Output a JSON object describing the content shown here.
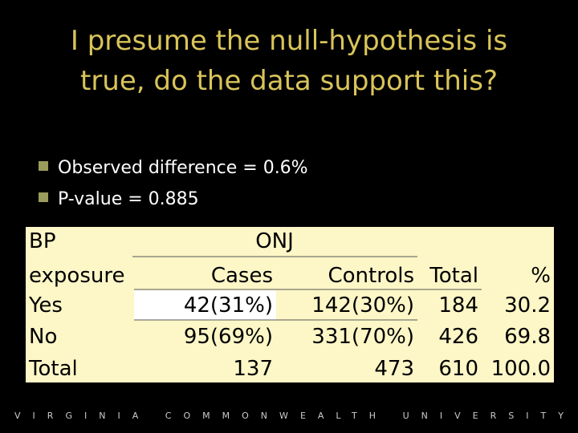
{
  "title": [
    "I presume the null-hypothesis is",
    "true, do the data support this?"
  ],
  "bullets": [
    "Observed difference = 0.6%",
    "P-value = 0.885"
  ],
  "table": {
    "header": [
      "BP",
      "ONJ"
    ],
    "columns": [
      "exposure",
      "Cases",
      "Controls",
      "Total",
      "%"
    ],
    "rows": [
      [
        "Yes",
        "42(31%)",
        "142(30%)",
        "184",
        "30.2"
      ],
      [
        "No",
        "95(69%)",
        "331(70%)",
        "426",
        "69.8"
      ],
      [
        "Total",
        "137",
        "473",
        "610",
        "100.0"
      ]
    ]
  },
  "footer": "VIRGINIA COMMONWEALTH UNIVERSITY"
}
